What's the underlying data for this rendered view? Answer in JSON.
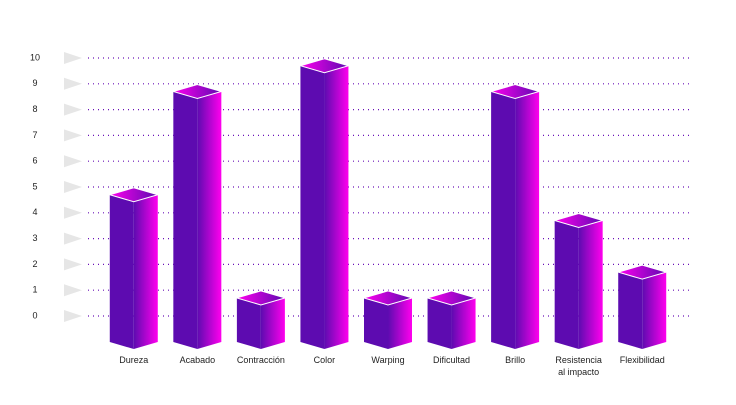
{
  "chart_data": {
    "type": "bar3d",
    "categories": [
      "Dureza",
      "Acabado",
      "Contracción",
      "Color",
      "Warping",
      "Dificultad",
      "Brillo",
      "Resistencia al impacto",
      "Flexibilidad"
    ],
    "values": [
      4.7,
      8.7,
      0.7,
      9.7,
      0.7,
      0.7,
      8.7,
      3.7,
      1.7
    ],
    "colors": [
      "#5d0bb0",
      "#ff00ee"
    ],
    "ylim": [
      0,
      10
    ],
    "yticks": [
      0,
      1,
      2,
      3,
      4,
      5,
      6,
      7,
      8,
      9,
      10
    ],
    "grid": true
  }
}
